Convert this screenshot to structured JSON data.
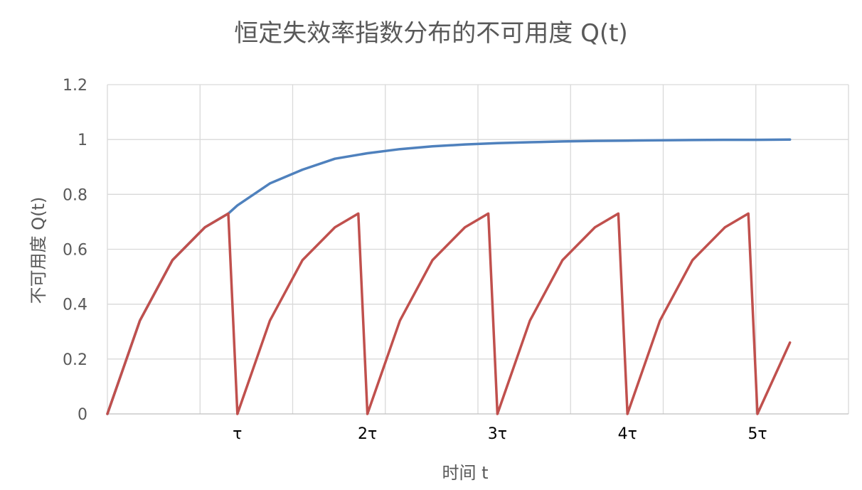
{
  "chart_data": {
    "type": "line",
    "title": "恒定失效率指数分布的不可用度 Q(t)",
    "xlabel": "时间 t",
    "ylabel": "不可用度 Q(t)",
    "ylim": [
      0,
      1.2
    ],
    "y_ticks": [
      "0",
      "0.2",
      "0.4",
      "0.6",
      "0.8",
      "1",
      "1.2"
    ],
    "x_tick_labels": [
      "τ",
      "2τ",
      "3τ",
      "4τ",
      "5τ"
    ],
    "x_tick_positions_tau": [
      1,
      2,
      3,
      4,
      5
    ],
    "xlim_tau": [
      0,
      5.7
    ],
    "grid": true,
    "legend": "none",
    "series": [
      {
        "color": "#4f81bd",
        "x_tau": [
          0,
          0.25,
          0.5,
          0.75,
          0.93,
          1.0,
          1.25,
          1.5,
          1.75,
          2.0,
          2.25,
          2.5,
          2.75,
          3.0,
          3.25,
          3.5,
          3.75,
          4.0,
          4.25,
          4.5,
          4.75,
          5.0,
          5.25
        ],
        "y": [
          0,
          0.34,
          0.56,
          0.68,
          0.73,
          0.76,
          0.84,
          0.89,
          0.93,
          0.95,
          0.965,
          0.975,
          0.982,
          0.987,
          0.99,
          0.993,
          0.995,
          0.996,
          0.997,
          0.998,
          0.999,
          0.999,
          1.0
        ]
      },
      {
        "color": "#c0504d",
        "x_tau": [
          0,
          0.25,
          0.5,
          0.75,
          0.93,
          1.0,
          1.25,
          1.5,
          1.75,
          1.93,
          2.0,
          2.25,
          2.5,
          2.75,
          2.93,
          3.0,
          3.25,
          3.5,
          3.75,
          3.93,
          4.0,
          4.25,
          4.5,
          4.75,
          4.93,
          5.0,
          5.25
        ],
        "y": [
          0,
          0.34,
          0.56,
          0.68,
          0.73,
          0,
          0.34,
          0.56,
          0.68,
          0.73,
          0,
          0.34,
          0.56,
          0.68,
          0.73,
          0,
          0.34,
          0.56,
          0.68,
          0.73,
          0,
          0.34,
          0.56,
          0.68,
          0.73,
          0,
          0.26
        ]
      }
    ]
  }
}
